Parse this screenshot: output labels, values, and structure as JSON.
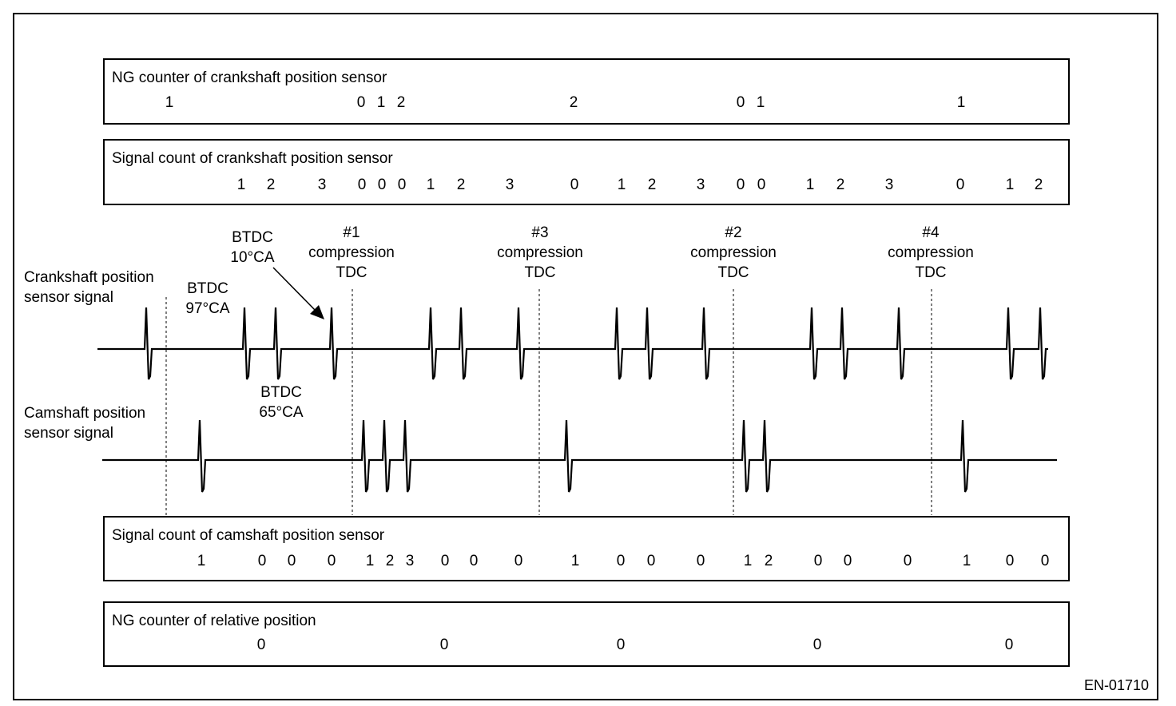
{
  "figure_code": "EN-01710",
  "panels": {
    "ng_crank": {
      "title": "NG counter of crankshaft position sensor",
      "values": [
        "1",
        "0",
        "1",
        "2",
        "2",
        "0",
        "1",
        "1"
      ]
    },
    "crank_count": {
      "title": "Signal count of crankshaft position sensor",
      "values": [
        "1",
        "2",
        "3",
        "0",
        "0",
        "0",
        "1",
        "2",
        "3",
        "0",
        "1",
        "2",
        "3",
        "0",
        "0",
        "1",
        "2",
        "3",
        "0",
        "1",
        "2"
      ]
    },
    "cam_count": {
      "title": "Signal count of camshaft position sensor",
      "values": [
        "1",
        "0",
        "0",
        "0",
        "1",
        "2",
        "3",
        "0",
        "0",
        "0",
        "1",
        "0",
        "0",
        "0",
        "1",
        "2",
        "0",
        "0",
        "0",
        "1",
        "0",
        "0"
      ]
    },
    "ng_relative": {
      "title": "NG counter of relative position",
      "values": [
        "0",
        "0",
        "0",
        "0",
        "0"
      ]
    }
  },
  "signals": {
    "crank_label_1": "Crankshaft position",
    "crank_label_2": "sensor signal",
    "cam_label_1": "Camshaft position",
    "cam_label_2": "sensor signal"
  },
  "tdc_labels": [
    {
      "cyl": "#1",
      "line2": "compression",
      "line3": "TDC"
    },
    {
      "cyl": "#3",
      "line2": "compression",
      "line3": "TDC"
    },
    {
      "cyl": "#2",
      "line2": "compression",
      "line3": "TDC"
    },
    {
      "cyl": "#4",
      "line2": "compression",
      "line3": "TDC"
    }
  ],
  "annotations": {
    "btdc10_1": "BTDC",
    "btdc10_2": "10°CA",
    "btdc97_1": "BTDC",
    "btdc97_2": "97°CA",
    "btdc65_1": "BTDC",
    "btdc65_2": "65°CA"
  }
}
